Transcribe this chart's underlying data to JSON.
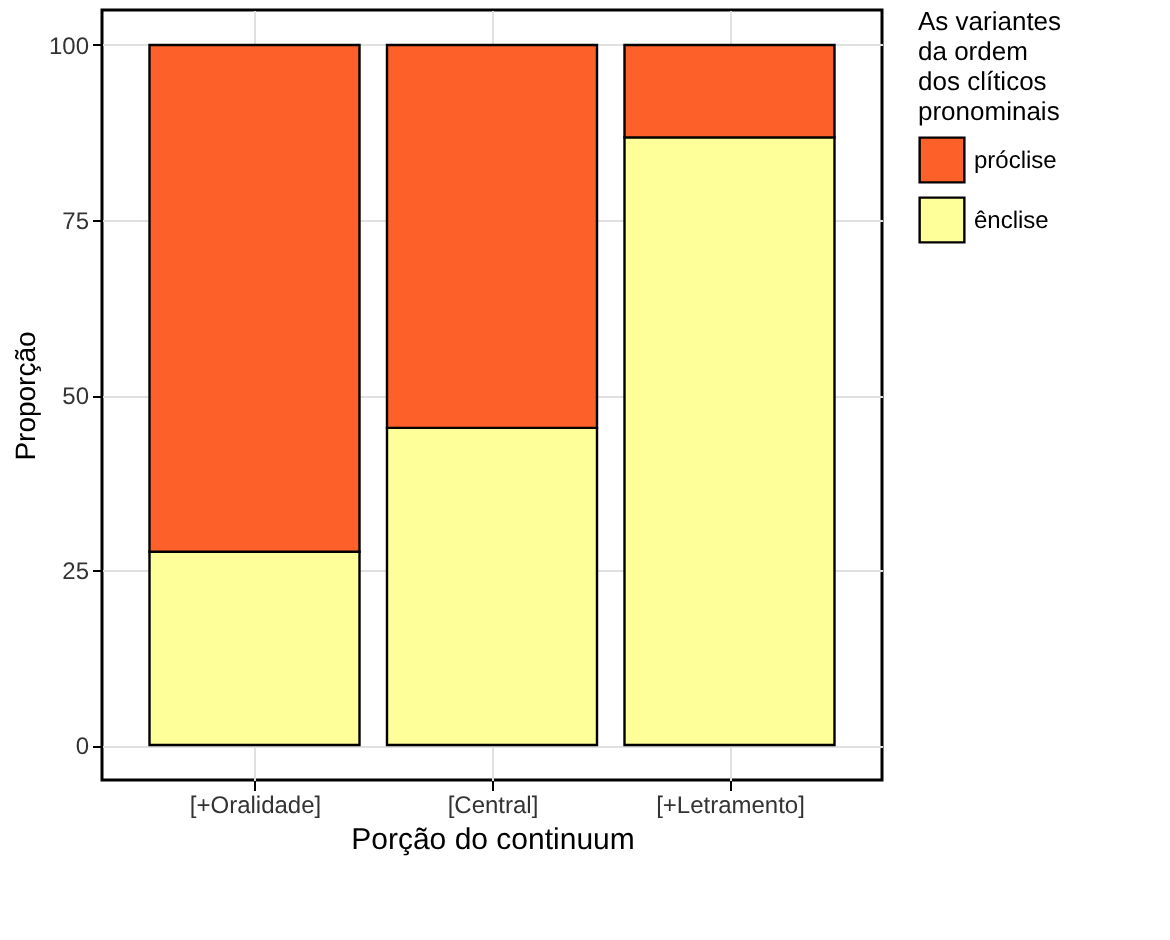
{
  "chart_data": {
    "type": "bar",
    "stacked": true,
    "categories": [
      "[+Oralidade]",
      "[Central]",
      "[+Letramento]"
    ],
    "xlabel": "Porção do continuum",
    "ylabel": "Proporção",
    "legend_title": "As variantes\nda ordem\ndos clíticos\npronominais",
    "series": [
      {
        "name": "ênclise",
        "color": "#ffff99",
        "values": [
          27.6,
          45.3,
          86.8
        ]
      },
      {
        "name": "próclise",
        "color": "#fe6029",
        "values": [
          72.4,
          54.7,
          13.2
        ]
      }
    ],
    "ylim": [
      -5,
      105
    ],
    "yticks": [
      0,
      25,
      50,
      75,
      100
    ],
    "grid": true,
    "legend": "right"
  }
}
